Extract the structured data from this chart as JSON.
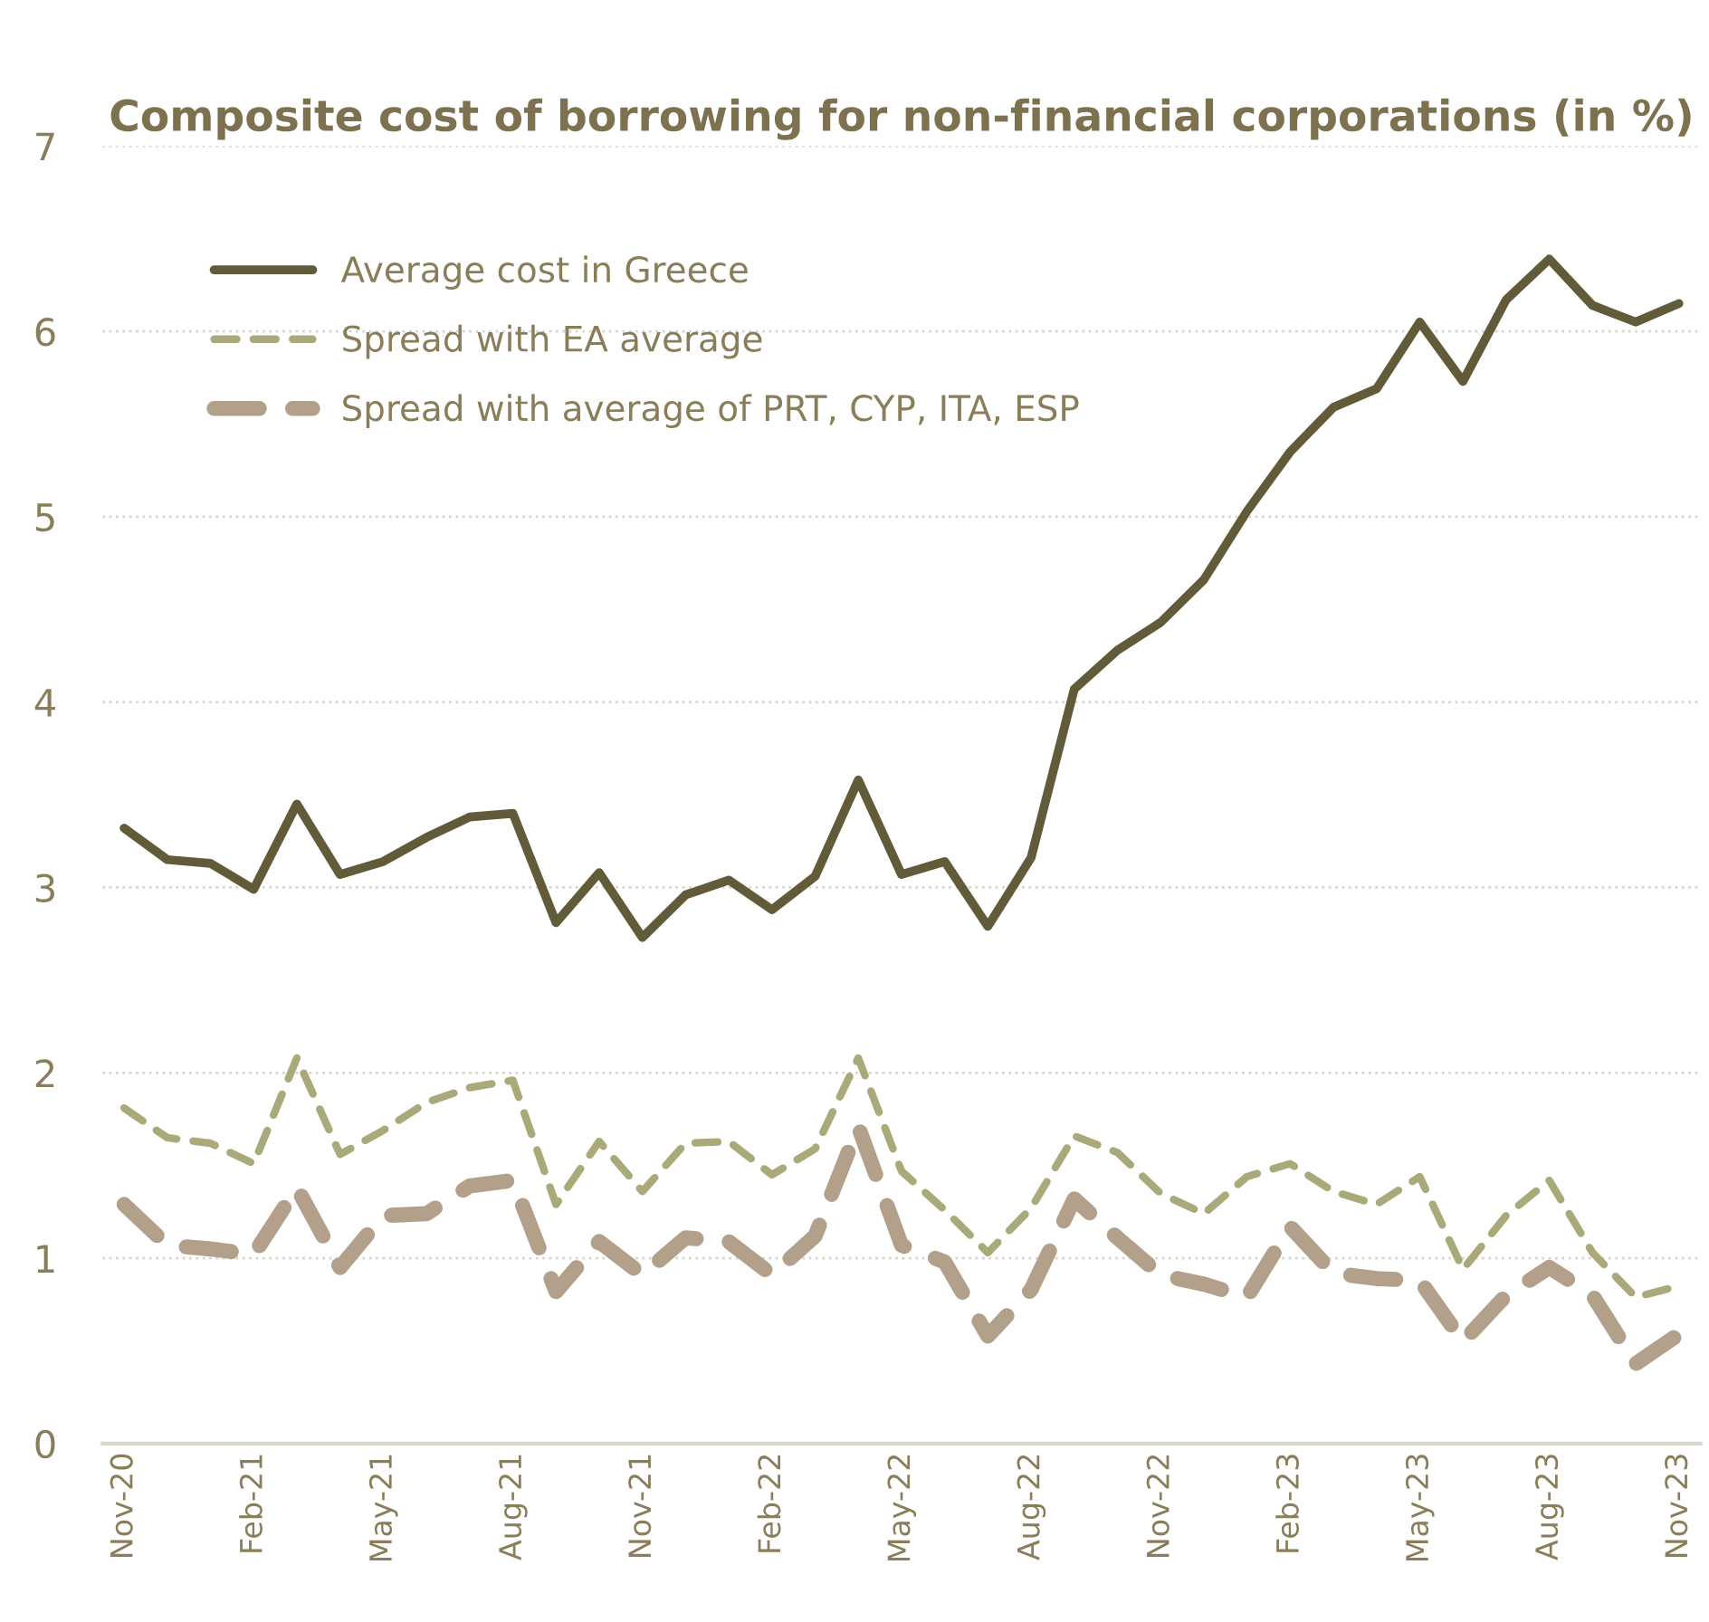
{
  "chart_data": {
    "type": "line",
    "title": "Composite cost of borrowing for non-financial corporations (in %)",
    "categories": [
      "Nov-20",
      null,
      null,
      "Feb-21",
      null,
      null,
      "May-21",
      null,
      null,
      "Aug-21",
      null,
      null,
      "Nov-21",
      null,
      null,
      "Feb-22",
      null,
      null,
      "May-22",
      null,
      null,
      "Aug-22",
      null,
      null,
      "Nov-22",
      null,
      null,
      "Feb-23",
      null,
      null,
      "May-23",
      null,
      null,
      "Aug-23",
      null,
      null,
      "Nov-23"
    ],
    "series": [
      {
        "name": "Average cost in Greece",
        "color": "#625b39",
        "line_style": "solid",
        "values": [
          3.32,
          3.15,
          3.13,
          2.99,
          3.45,
          3.07,
          3.14,
          3.27,
          3.38,
          3.4,
          2.81,
          3.08,
          2.73,
          2.96,
          3.04,
          2.88,
          3.06,
          3.58,
          3.07,
          3.14,
          2.79,
          3.16,
          4.07,
          4.28,
          4.43,
          4.66,
          5.03,
          5.35,
          5.59,
          5.69,
          6.05,
          5.73,
          6.17,
          6.39,
          6.14,
          6.05,
          6.15
        ]
      },
      {
        "name": "Spread with EA average",
        "color": "#a9a97a",
        "line_style": "dashed",
        "values": [
          1.81,
          1.65,
          1.62,
          1.51,
          2.08,
          1.56,
          1.69,
          1.84,
          1.92,
          1.96,
          1.29,
          1.63,
          1.36,
          1.62,
          1.63,
          1.45,
          1.59,
          2.08,
          1.47,
          1.26,
          1.03,
          1.27,
          1.66,
          1.57,
          1.35,
          1.24,
          1.44,
          1.51,
          1.36,
          1.29,
          1.44,
          0.94,
          1.23,
          1.42,
          1.03,
          0.79,
          0.85
        ]
      },
      {
        "name": "Spread with average of PRT, CYP, ITA, ESP",
        "color": "#b3a08a",
        "line_style": "dashed",
        "values": [
          1.29,
          1.07,
          1.05,
          1.02,
          1.38,
          0.95,
          1.23,
          1.24,
          1.39,
          1.42,
          0.82,
          1.09,
          0.91,
          1.11,
          1.09,
          0.91,
          1.12,
          1.71,
          1.07,
          0.98,
          0.58,
          0.83,
          1.32,
          1.11,
          0.91,
          0.86,
          0.79,
          1.17,
          0.92,
          0.89,
          0.88,
          0.55,
          0.8,
          0.95,
          0.8,
          0.43,
          0.59
        ]
      }
    ],
    "ylim": [
      0,
      7
    ],
    "yticks": [
      0,
      1,
      2,
      3,
      4,
      5,
      6,
      7
    ],
    "grid": "y",
    "legend": "top left",
    "marker": "none"
  }
}
